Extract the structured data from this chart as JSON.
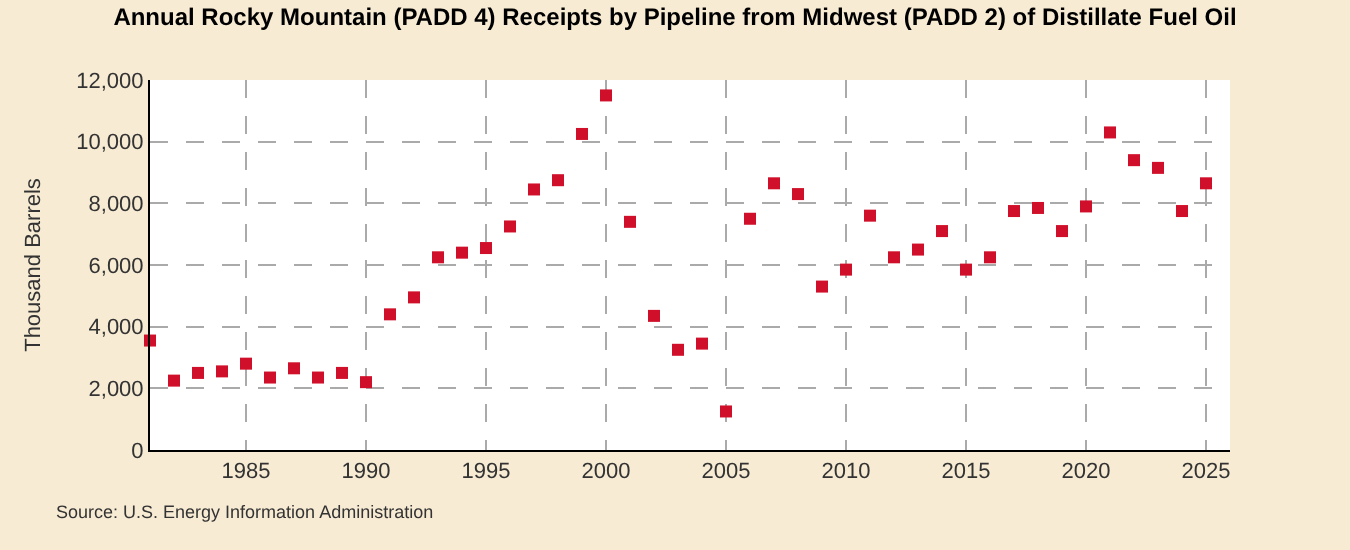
{
  "chart_data": {
    "type": "scatter",
    "title": "Annual Rocky Mountain (PADD 4) Receipts by Pipeline from Midwest (PADD 2) of Distillate Fuel Oil",
    "ylabel": "Thousand Barrels",
    "annotations": [
      "Source: U.S. Energy Information Administration"
    ],
    "x": [
      1981,
      1982,
      1983,
      1984,
      1985,
      1986,
      1987,
      1988,
      1989,
      1990,
      1991,
      1992,
      1993,
      1994,
      1995,
      1996,
      1997,
      1998,
      1999,
      2000,
      2001,
      2002,
      2003,
      2004,
      2005,
      2006,
      2007,
      2008,
      2009,
      2010,
      2011,
      2012,
      2013,
      2014,
      2015,
      2016,
      2017,
      2018,
      2019,
      2020,
      2021,
      2022,
      2023,
      2024,
      2025
    ],
    "series": [
      {
        "color": "#d0102a",
        "values": [
          3550,
          2250,
          2500,
          2550,
          2800,
          2350,
          2650,
          2350,
          2500,
          2200,
          4400,
          4950,
          6250,
          6400,
          6550,
          7250,
          8450,
          8750,
          10250,
          11500,
          7400,
          4350,
          3250,
          3450,
          1250,
          7500,
          8650,
          8300,
          5300,
          5850,
          7600,
          6250,
          6500,
          7100,
          5850,
          6250,
          7750,
          7850,
          7100,
          7900,
          10300,
          9400,
          9150,
          7750,
          8650
        ]
      }
    ],
    "xlim": [
      1981,
      2026
    ],
    "xticks": [
      1985,
      1990,
      1995,
      2000,
      2005,
      2010,
      2015,
      2020,
      2025
    ],
    "ylim": [
      0,
      12000
    ],
    "yticks": [
      {
        "value": 0,
        "label": "0"
      },
      {
        "value": 2000,
        "label": "2,000"
      },
      {
        "value": 4000,
        "label": "4,000"
      },
      {
        "value": 6000,
        "label": "6,000"
      },
      {
        "value": 8000,
        "label": "8,000"
      },
      {
        "value": 10000,
        "label": "10,000"
      },
      {
        "value": 12000,
        "label": "12,000"
      }
    ],
    "grid": true,
    "marker": "square",
    "legend": false
  }
}
